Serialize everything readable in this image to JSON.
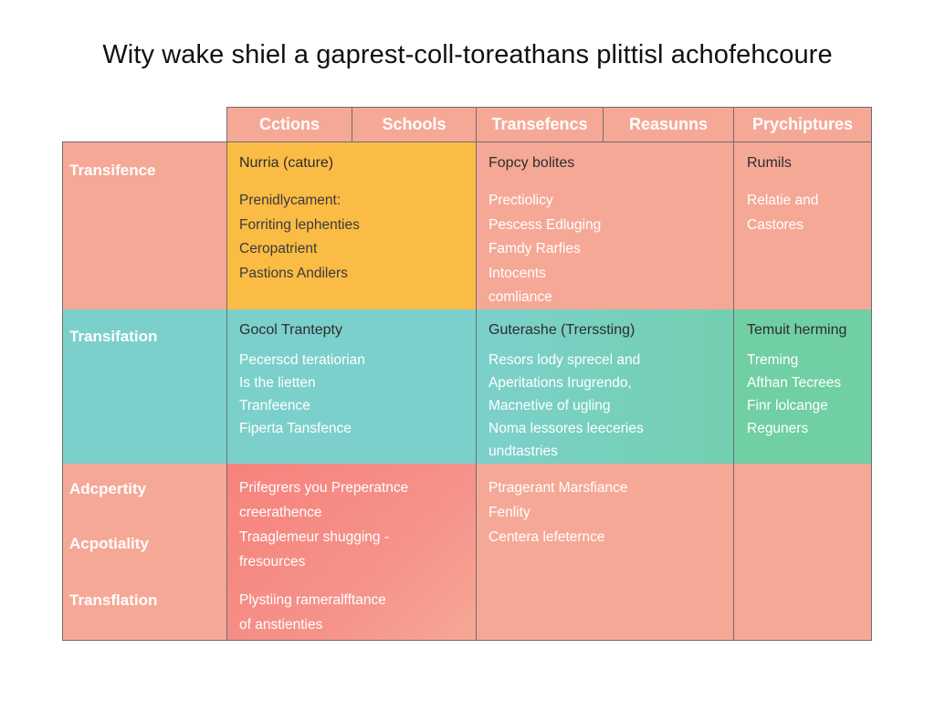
{
  "title": "Wity wake shiel a gaprest-coll-toreathans plittisl achofehcoure",
  "headers": [
    "Cctions",
    "Schools",
    "Transefencs",
    "Reasunns",
    "Prychiptures"
  ],
  "row_labels": [
    "Transifence",
    "Transifation",
    "Adcpertity",
    "Acpotiality",
    "Transflation"
  ],
  "colors": {
    "salmon": "#f6a896",
    "yellow": "#fbbc45",
    "teal": "#7cd0cb",
    "green": "#70cfa3",
    "red": "#f6837c",
    "border": "#6e6e6e"
  },
  "cells": {
    "r1c1": {
      "head": "Nurria (cature)",
      "lines": [
        "Prenidlycament:",
        "Forriting lephenties",
        "Ceropatrient",
        "Pastions Andilers"
      ]
    },
    "r1c2": {
      "head": "Fopcy bolites",
      "lines": [
        "Prectiolicy",
        "Pescess Edluging",
        "Famdy Rarfies",
        "Intocents",
        "comliance"
      ]
    },
    "r1c3": {
      "head": "Rumils",
      "lines": [
        "Relatie and",
        "Castores"
      ]
    },
    "r2c1": {
      "head": "Gocol Trantepty",
      "lines": [
        "Pecerscd teratiorian",
        "Is the lietten",
        "Tranfeence",
        "Fiperta Tansfence"
      ]
    },
    "r2c2": {
      "head": "Guterashe (Trerssting)",
      "lines": [
        "Resors lody sprecel and",
        "Aperitations Irugrendo,",
        "Macnetive of ugling",
        "Noma lessores leeceries",
        "undtastries"
      ]
    },
    "r2c3": {
      "head": "Temuit herming",
      "lines": [
        "Treming",
        "Afthan Tecrees",
        "Finr lolcange",
        "Reguners"
      ]
    },
    "r3c1": {
      "lines": [
        "Prifegrers you Preperatnce",
        "creerathence",
        "Traaglemeur shugging -",
        "fresources"
      ]
    },
    "r3c1b": {
      "lines": [
        "Plystiing rameralfftance",
        "of anstienties"
      ]
    },
    "r3c2": {
      "lines": [
        "Ptragerant Marsfiance",
        "Fenlity",
        "Centera lefeternce"
      ]
    }
  }
}
